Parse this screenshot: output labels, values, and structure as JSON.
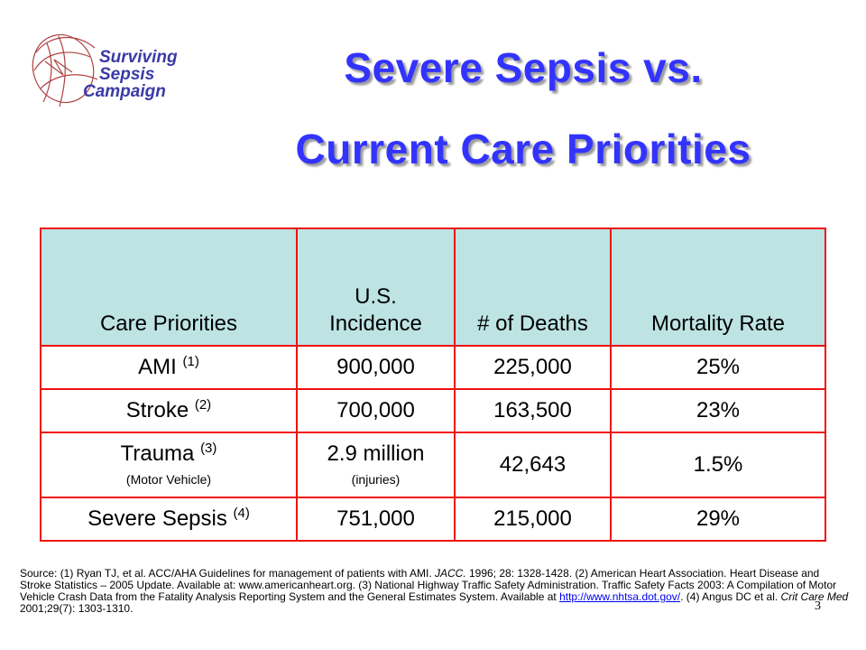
{
  "logo": {
    "line1": "Surviving",
    "line2": "Sepsis",
    "line3": "Campaign",
    "color": "#3a3aa8",
    "swirl_color": "#b04040"
  },
  "title": {
    "line1": "Severe Sepsis vs.",
    "line2": "Current Care Priorities",
    "color": "#3333ff"
  },
  "table": {
    "header": {
      "col1": "Care Priorities",
      "col2_line1": "U.S.",
      "col2_line2": "Incidence",
      "col3": "# of Deaths",
      "col4": "Mortality Rate"
    },
    "rows": [
      {
        "priority": "AMI",
        "ref": "(1)",
        "incidence": "900,000",
        "deaths": "225,000",
        "mortality": "25%"
      },
      {
        "priority": "Stroke",
        "ref": "(2)",
        "incidence": "700,000",
        "deaths": "163,500",
        "mortality": "23%"
      },
      {
        "priority": "Trauma",
        "ref": "(3)",
        "priority_note": "(Motor Vehicle)",
        "incidence": "2.9 million",
        "incidence_note": "(injuries)",
        "deaths": "42,643",
        "mortality": "1.5%"
      },
      {
        "priority": "Severe Sepsis",
        "ref": "(4)",
        "incidence": "751,000",
        "deaths": "215,000",
        "mortality": "29%"
      }
    ],
    "border_color": "#ee1111",
    "header_bg": "#bde3e3"
  },
  "source": {
    "part1": "Source:  (1) Ryan TJ, et al. ACC/AHA Guidelines for management of patients with AMI. ",
    "jacc": "JACC.",
    "part2": " 1996; 28: 1328-1428.  (2) American Heart Association. Heart Disease and Stroke Statistics – 2005 Update. Available at: www.americanheart.org.  (3) National Highway Traffic Safety Administration. Traffic Safety Facts 2003:  A Compilation of Motor Vehicle Crash Data from the Fatality Analysis Reporting System and the General Estimates System. Available at ",
    "link": "http://www.nhtsa.dot.gov/",
    "part3": ". (4) Angus DC et al. ",
    "journal": "Crit Care Med",
    "part4": " 2001;29(7):  1303-1310."
  },
  "page_number": "3"
}
